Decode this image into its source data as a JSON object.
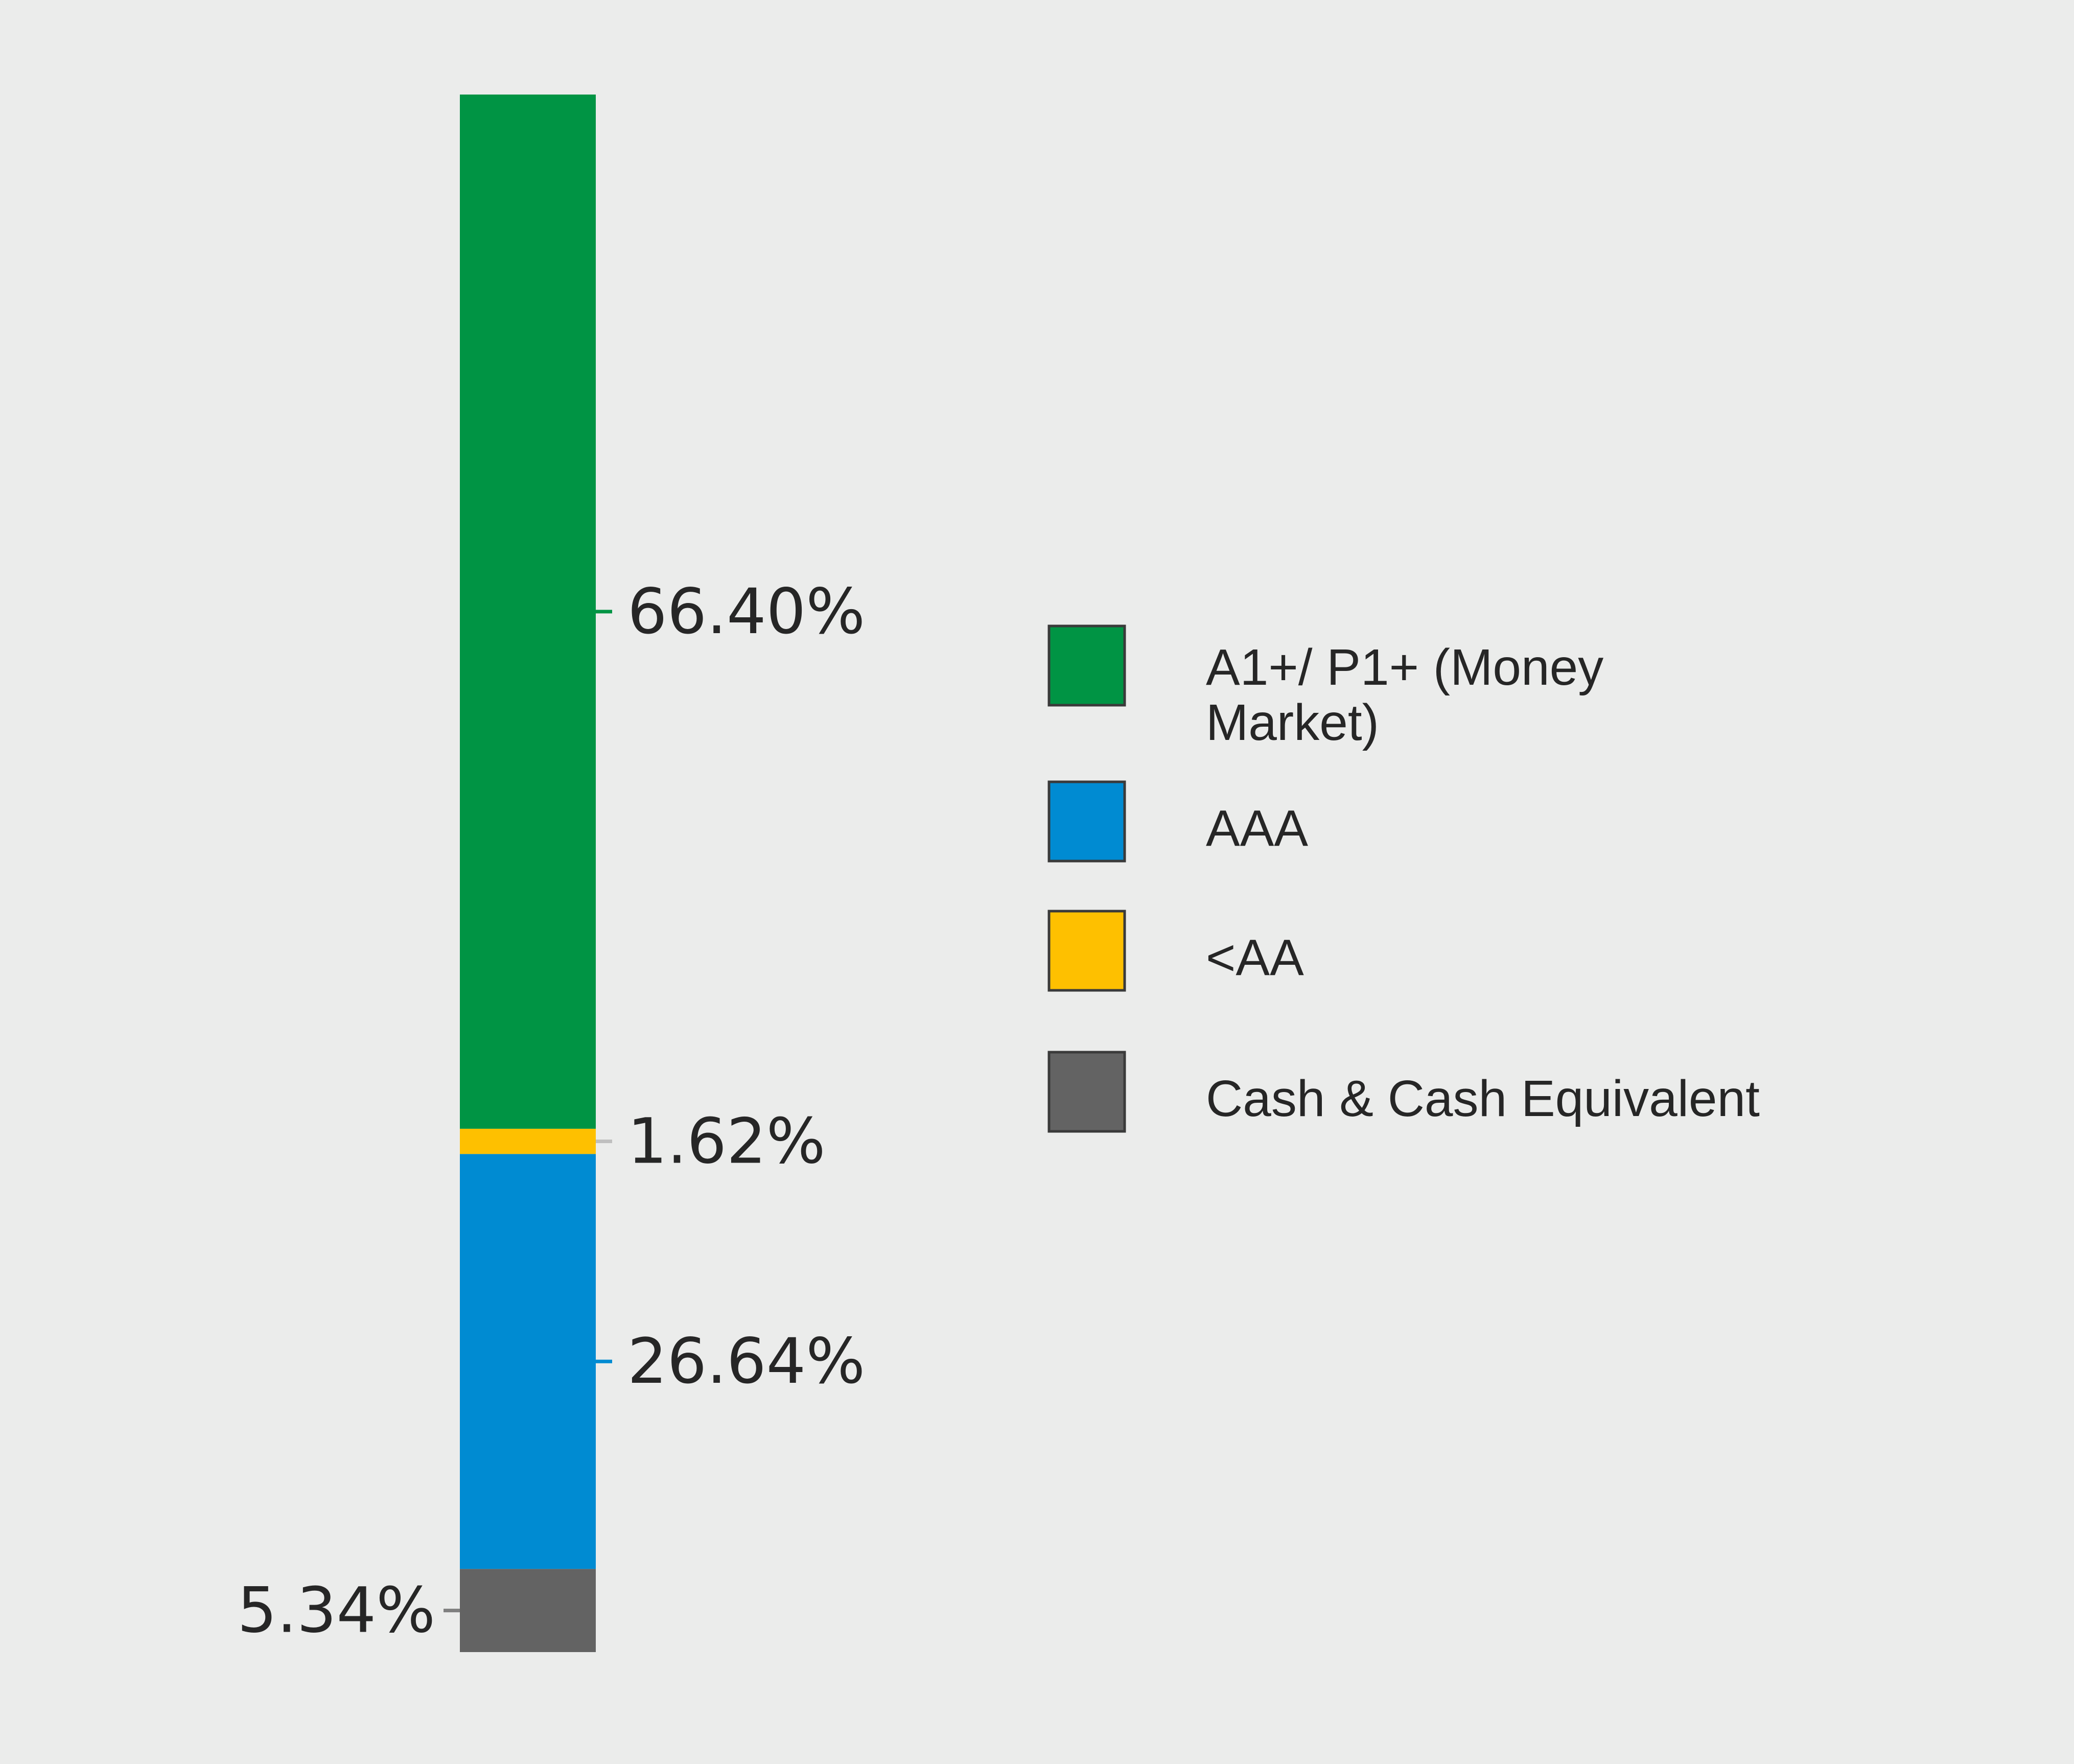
{
  "chart_data": {
    "type": "bar",
    "stacked": true,
    "categories": [
      ""
    ],
    "series": [
      {
        "name": "Cash & Cash Equivalent",
        "value": 5.34,
        "label": "5.34%",
        "color": "#636363"
      },
      {
        "name": "AAA",
        "value": 26.64,
        "label": "26.64%",
        "color": "#008bd2"
      },
      {
        "name": "<AA",
        "value": 1.62,
        "label": "1.62%",
        "color": "#fec000"
      },
      {
        "name": "A1+/ P1+ (Money Market)",
        "value": 66.4,
        "label": "66.40%",
        "color": "#009444"
      }
    ],
    "legend": {
      "placement": "right",
      "entries": [
        {
          "lines": [
            "A1+/ P1+ (Money",
            "Market)"
          ],
          "color": "#009444"
        },
        {
          "lines": [
            "AAA"
          ],
          "color": "#008bd2"
        },
        {
          "lines": [
            "<AA"
          ],
          "color": "#fec000"
        },
        {
          "lines": [
            "Cash & Cash Equivalent"
          ],
          "color": "#636363"
        }
      ]
    },
    "ylim": [
      0,
      100
    ],
    "grid": false
  },
  "colors": {
    "background": "#ebeceb",
    "text": "#262626",
    "leader_neutral": "#bfbfbf"
  }
}
